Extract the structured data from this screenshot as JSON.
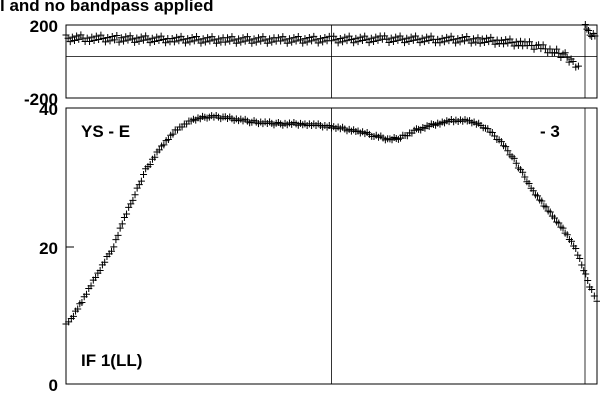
{
  "chart_data": [
    {
      "type": "scatter",
      "panel": "phase",
      "title": "l and no bandpass applied",
      "ylim": [
        -200,
        200
      ],
      "yticks": [
        "200",
        "-200"
      ],
      "xlim": [
        0,
        1
      ],
      "grid": true,
      "series": [
        {
          "marker": "+",
          "color": "#000000",
          "points": [
            [
              0.0,
              127
            ],
            [
              0.04,
              128
            ],
            [
              0.1,
              124
            ],
            [
              0.2,
              120
            ],
            [
              0.3,
              118
            ],
            [
              0.4,
              118
            ],
            [
              0.5,
              120
            ],
            [
              0.6,
              122
            ],
            [
              0.7,
              121
            ],
            [
              0.78,
              118
            ],
            [
              0.82,
              110
            ],
            [
              0.86,
              98
            ],
            [
              0.89,
              80
            ],
            [
              0.92,
              55
            ],
            [
              0.94,
              30
            ],
            [
              0.955,
              0
            ],
            [
              0.965,
              -25
            ]
          ]
        },
        {
          "marker": "+",
          "color": "#000000",
          "points": [
            [
              0.978,
              185
            ],
            [
              0.984,
              170
            ],
            [
              0.99,
              155
            ],
            [
              0.996,
              140
            ]
          ]
        }
      ]
    },
    {
      "type": "scatter",
      "panel": "amplitude",
      "ylim": [
        0,
        40
      ],
      "yticks": [
        "40",
        "20",
        "0"
      ],
      "xlim": [
        0,
        1
      ],
      "grid": true,
      "annotations": [
        "YS - E",
        "- 3",
        "IF 1(LL)"
      ],
      "series": [
        {
          "marker": "+",
          "color": "#000000",
          "points": [
            [
              0.0,
              8.5
            ],
            [
              0.01,
              9.5
            ],
            [
              0.03,
              12.0
            ],
            [
              0.06,
              16.0
            ],
            [
              0.09,
              20.0
            ],
            [
              0.11,
              24.0
            ],
            [
              0.13,
              27.5
            ],
            [
              0.15,
              31.0
            ],
            [
              0.18,
              34.5
            ],
            [
              0.21,
              37.0
            ],
            [
              0.24,
              38.3
            ],
            [
              0.27,
              38.8
            ],
            [
              0.3,
              38.6
            ],
            [
              0.35,
              38.0
            ],
            [
              0.4,
              37.7
            ],
            [
              0.45,
              37.7
            ],
            [
              0.5,
              37.3
            ],
            [
              0.55,
              36.6
            ],
            [
              0.58,
              36.0
            ],
            [
              0.61,
              35.4
            ],
            [
              0.63,
              35.7
            ],
            [
              0.66,
              36.8
            ],
            [
              0.7,
              37.8
            ],
            [
              0.73,
              38.2
            ],
            [
              0.76,
              38.1
            ],
            [
              0.79,
              37.2
            ],
            [
              0.82,
              35.0
            ],
            [
              0.84,
              33.0
            ],
            [
              0.86,
              30.5
            ],
            [
              0.88,
              28.0
            ],
            [
              0.9,
              26.0
            ],
            [
              0.92,
              24.0
            ],
            [
              0.94,
              22.0
            ],
            [
              0.96,
              19.5
            ],
            [
              0.975,
              16.5
            ],
            [
              0.99,
              13.5
            ],
            [
              1.0,
              12.0
            ]
          ]
        }
      ]
    }
  ]
}
